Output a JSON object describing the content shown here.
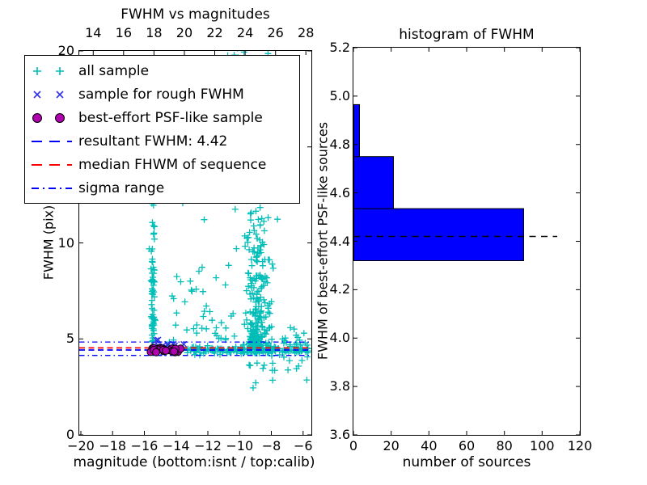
{
  "chart_data": [
    {
      "type": "scatter",
      "title": "FWHM vs magnitudes",
      "xlabel": "magnitude (bottom:isnt / top:calib)",
      "ylabel": "FWHM (pix)",
      "x_axis_bottom": {
        "label_values": [
          -20,
          -18,
          -16,
          -14,
          -12,
          -10,
          -8,
          -6
        ],
        "labels": [
          "−20",
          "−18",
          "−16",
          "−14",
          "−12",
          "−10",
          "−8",
          "−6"
        ],
        "lim": [
          -20.1,
          -5.48
        ]
      },
      "x_axis_top": {
        "label_values": [
          14,
          16,
          18,
          20,
          22,
          24,
          26,
          28
        ],
        "labels": [
          "14",
          "16",
          "18",
          "20",
          "22",
          "24",
          "26",
          "28"
        ],
        "lim": [
          13.08,
          28.36
        ]
      },
      "y_axis": {
        "label_values": [
          0,
          5,
          10,
          15,
          20
        ],
        "labels": [
          "0",
          "5",
          "10",
          "15",
          "20"
        ],
        "lim": [
          0,
          20
        ]
      },
      "rng_seed": 1337,
      "series": [
        {
          "name": "all sample",
          "marker": "+",
          "color": "#00bdb8",
          "clusters": [
            {
              "n": 55,
              "x": [
                "norm",
                -15.45,
                0.07
              ],
              "y": [
                "uni",
                4.78,
                9.5
              ]
            },
            {
              "n": 13,
              "x": [
                "norm",
                -15.44,
                0.09
              ],
              "y": [
                "uni",
                9.5,
                12.6
              ]
            },
            {
              "n": 215,
              "x": [
                "norm",
                -8.85,
                0.38
              ],
              "y": [
                "exp",
                4.25,
                2.0,
                16.2
              ]
            },
            {
              "n": 70,
              "x": [
                "norm",
                -8.95,
                0.55
              ],
              "y": [
                "uni",
                8.0,
                14.0
              ]
            },
            {
              "n": 26,
              "x": [
                "norm",
                -9.1,
                0.5
              ],
              "y": [
                "uni",
                14.0,
                20.3
              ]
            },
            {
              "n": 125,
              "x": [
                "uni",
                -13.3,
                -5.55
              ],
              "y": [
                "norm",
                4.42,
                0.09
              ]
            },
            {
              "n": 35,
              "x": [
                "uni",
                -8.3,
                -5.6
              ],
              "y": [
                "norm",
                4.45,
                0.3
              ]
            },
            {
              "n": 14,
              "x": [
                "uni",
                -9.6,
                -5.7
              ],
              "y": [
                "uni",
                2.4,
                3.9
              ]
            },
            {
              "n": 48,
              "x": [
                "uni",
                -14.6,
                -10.3
              ],
              "y": [
                "exp",
                4.7,
                2.3,
                13.0
              ]
            },
            {
              "n": 7,
              "x": [
                "uni",
                -10.9,
                -9.3
              ],
              "y": [
                "uni",
                19.4,
                20.4
              ]
            },
            {
              "n": 10,
              "x": [
                "uni",
                -7.3,
                -5.6
              ],
              "y": [
                "uni",
                4.6,
                5.7
              ]
            }
          ]
        },
        {
          "name": "sample for rough FWHM",
          "marker": "x",
          "color": "#3333e6",
          "clusters": [
            {
              "n": 18,
              "x": [
                "uni",
                -15.55,
                -13.45
              ],
              "y": [
                "norm",
                4.62,
                0.16
              ]
            },
            {
              "n": 2,
              "x": [
                "uni",
                -15.25,
                -15.0
              ],
              "y": [
                "uni",
                4.92,
                5.06
              ]
            }
          ]
        },
        {
          "name": "best-effort PSF-like sample",
          "marker": "o",
          "color": "#b000b0",
          "edge_color": "#000000",
          "clusters": [
            {
              "n": 26,
              "x": [
                "uni",
                -15.6,
                -13.5
              ],
              "y": [
                "norm",
                4.45,
                0.07
              ]
            }
          ]
        }
      ],
      "hlines": [
        {
          "name": "sigma range upper",
          "y": 4.84,
          "color": "#0000ff",
          "style": "dashdot"
        },
        {
          "name": "sigma range lower",
          "y": 4.14,
          "color": "#0000ff",
          "style": "dashdot"
        },
        {
          "name": "resultant FWHM",
          "y": 4.42,
          "color": "#0000ff",
          "style": "dashed"
        },
        {
          "name": "median FHWM of sequence",
          "y": 4.53,
          "color": "#ff0000",
          "style": "dashed"
        }
      ],
      "legend": [
        {
          "label": "all sample",
          "type": "points",
          "marker": "+",
          "color": "#00bdb8"
        },
        {
          "label": "sample for rough FWHM",
          "type": "points",
          "marker": "x",
          "color": "#3333e6"
        },
        {
          "label": "best-effort PSF-like sample",
          "type": "points",
          "marker": "o",
          "color": "#b000b0"
        },
        {
          "label": "resultant FWHM: 4.42",
          "type": "line",
          "style": "dashed",
          "color": "#0000ff"
        },
        {
          "label": "median FHWM of sequence",
          "type": "line",
          "style": "dashed",
          "color": "#ff0000"
        },
        {
          "label": "sigma range",
          "type": "line",
          "style": "dashdot",
          "color": "#0000ff"
        }
      ]
    },
    {
      "type": "histogram-horizontal",
      "title": "histogram of FWHM",
      "xlabel": "number of sources",
      "ylabel": "FWHM of best-effort PSF-like sources",
      "bar_color": "#0000ff",
      "bar_edge_color": "#000000",
      "bins": [
        {
          "from": 4.32,
          "to": 4.535,
          "count": 90
        },
        {
          "from": 4.535,
          "to": 4.75,
          "count": 21
        },
        {
          "from": 4.75,
          "to": 4.965,
          "count": 3
        }
      ],
      "marker_line": {
        "y": 4.42,
        "x_start": 0,
        "x_end": 108,
        "color": "#000000",
        "style": "dashed"
      },
      "x_axis": {
        "label_values": [
          0,
          20,
          40,
          60,
          80,
          100,
          120
        ],
        "labels": [
          "0",
          "20",
          "40",
          "60",
          "80",
          "100",
          "120"
        ],
        "lim": [
          0,
          120
        ]
      },
      "y_axis": {
        "label_values": [
          3.6,
          3.8,
          4.0,
          4.2,
          4.4,
          4.6,
          4.8,
          5.0,
          5.2
        ],
        "labels": [
          "3.6",
          "3.8",
          "4.0",
          "4.2",
          "4.4",
          "4.6",
          "4.8",
          "5.0",
          "5.2"
        ],
        "lim": [
          3.6,
          5.2
        ]
      }
    }
  ]
}
